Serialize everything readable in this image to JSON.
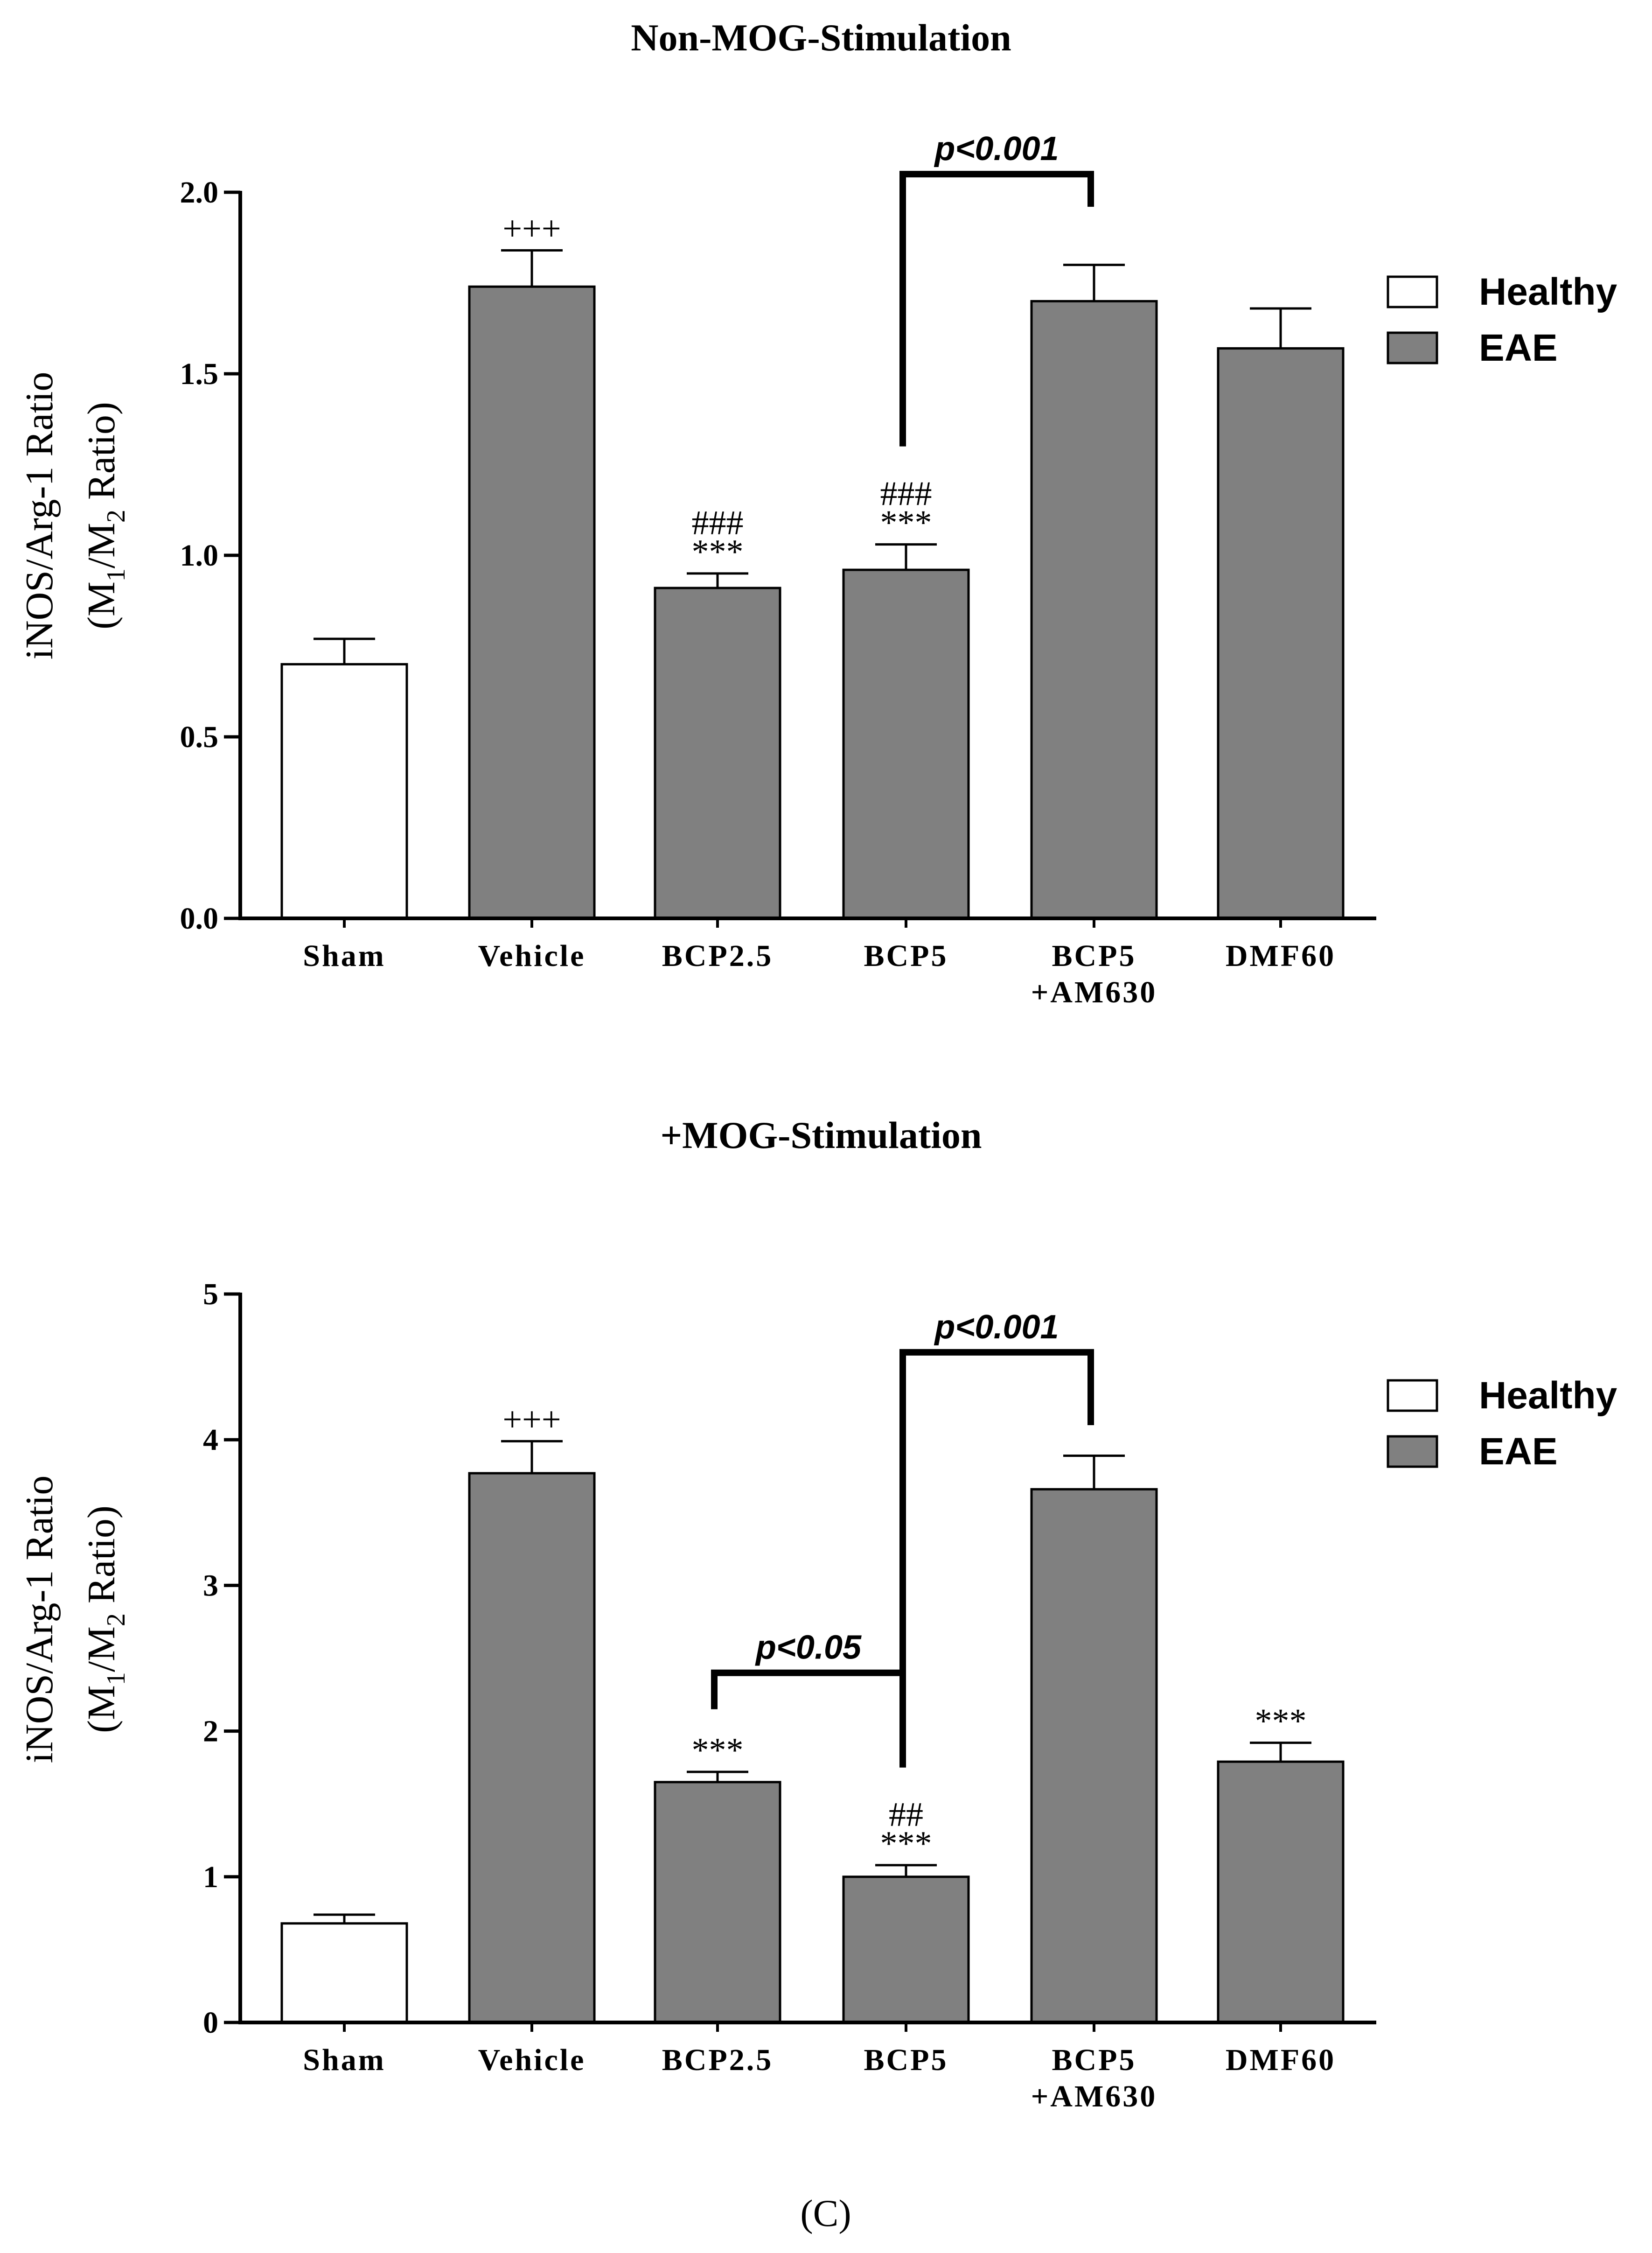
{
  "chart_data": [
    {
      "type": "bar",
      "title": "Non-MOG-Stimulation",
      "ylabel_line1": "iNOS/Arg-1 Ratio",
      "ylabel_line2_parts": [
        "(M",
        "1",
        "/M",
        "2",
        " Ratio)"
      ],
      "ylim": [
        0,
        2
      ],
      "yticks": [
        "0.0",
        "0.5",
        "1.0",
        "1.5",
        "2.0"
      ],
      "ytick_values": [
        0,
        0.5,
        1,
        1.5,
        2
      ],
      "categories": [
        [
          "Sham"
        ],
        [
          "Vehicle"
        ],
        [
          "BCP2.5"
        ],
        [
          "BCP5"
        ],
        [
          "BCP5",
          "+AM630"
        ],
        [
          "DMF60"
        ]
      ],
      "values": [
        0.7,
        1.74,
        0.91,
        0.96,
        1.7,
        1.57
      ],
      "errors": [
        0.07,
        0.1,
        0.04,
        0.07,
        0.1,
        0.11
      ],
      "groups": [
        "Healthy",
        "EAE",
        "EAE",
        "EAE",
        "EAE",
        "EAE"
      ],
      "annotations": [
        {
          "bar": 1,
          "lines": [
            "+++"
          ]
        },
        {
          "bar": 2,
          "lines": [
            "###",
            "***"
          ]
        },
        {
          "bar": 3,
          "lines": [
            "###",
            "***"
          ]
        }
      ],
      "brackets": [
        {
          "label": "p<0.001",
          "from": 3,
          "to": 4,
          "y_top": 2.05,
          "y_left": 1.3,
          "y_right": 1.96
        }
      ],
      "legend": [
        {
          "label": "Healthy",
          "color": "#ffffff"
        },
        {
          "label": "EAE",
          "color": "#808080"
        }
      ],
      "legend_position": "top-right"
    },
    {
      "type": "bar",
      "title": "+MOG-Stimulation",
      "ylabel_line1": "iNOS/Arg-1 Ratio",
      "ylabel_line2_parts": [
        "(M",
        "1",
        "/M",
        "2",
        " Ratio)"
      ],
      "ylim": [
        0,
        5
      ],
      "yticks": [
        "0",
        "1",
        "2",
        "3",
        "4",
        "5"
      ],
      "ytick_values": [
        0,
        1,
        2,
        3,
        4,
        5
      ],
      "categories": [
        [
          "Sham"
        ],
        [
          "Vehicle"
        ],
        [
          "BCP2.5"
        ],
        [
          "BCP5"
        ],
        [
          "BCP5",
          "+AM630"
        ],
        [
          "DMF60"
        ]
      ],
      "values": [
        0.68,
        3.77,
        1.65,
        1.0,
        3.66,
        1.79
      ],
      "errors": [
        0.06,
        0.22,
        0.07,
        0.08,
        0.23,
        0.13
      ],
      "groups": [
        "Healthy",
        "EAE",
        "EAE",
        "EAE",
        "EAE",
        "EAE"
      ],
      "annotations": [
        {
          "bar": 1,
          "lines": [
            "+++"
          ]
        },
        {
          "bar": 2,
          "lines": [
            "***"
          ]
        },
        {
          "bar": 3,
          "lines": [
            "##",
            "***"
          ]
        },
        {
          "bar": 5,
          "lines": [
            "***"
          ]
        }
      ],
      "brackets": [
        {
          "label": "p<0.05",
          "from": 2,
          "to": 3,
          "y_top": 2.4,
          "y_left": 2.15,
          "y_right": 1.75
        },
        {
          "label": "p<0.001",
          "from": 3,
          "to": 4,
          "y_top": 4.6,
          "y_left": 1.75,
          "y_right": 4.1
        }
      ],
      "legend": [
        {
          "label": "Healthy",
          "color": "#ffffff"
        },
        {
          "label": "EAE",
          "color": "#808080"
        }
      ],
      "legend_position": "top-right"
    }
  ],
  "panel_label": "(C)",
  "colors": {
    "healthy": "#ffffff",
    "eae": "#808080",
    "stroke": "#000000"
  }
}
